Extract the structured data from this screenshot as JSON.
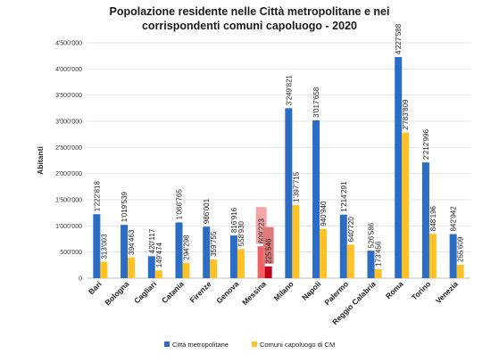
{
  "chart_data": {
    "type": "bar",
    "title_lines": [
      "Popolazione residente nelle Città metropolitane e nei",
      "corrispondenti comuni capoluogo - 2020"
    ],
    "ylabel": "Abitanti",
    "xlabel": "",
    "ylim": [
      0,
      4500000
    ],
    "yticks": [
      "0",
      "500'000",
      "1'000'000",
      "1'500'000",
      "2'000'000",
      "2'500'000",
      "3'000'000",
      "3'500'000",
      "4'000'000",
      "4'500'000"
    ],
    "grid": true,
    "legend_position": "bottom",
    "categories": [
      "Bari",
      "Bologna",
      "Cagliari",
      "Catania",
      "Firenze",
      "Genova",
      "Messina",
      "Milano",
      "Napoli",
      "Palermo",
      "Reggio Calabria",
      "Roma",
      "Torino",
      "Venezia"
    ],
    "series": [
      {
        "name": "Città metropolitane",
        "color": "#2b6cc4",
        "values": [
          1222818,
          1019539,
          420117,
          1066765,
          986001,
          816916,
          609223,
          3249821,
          3017658,
          1214291,
          526586,
          4227588,
          2212996,
          842942
        ],
        "labels": [
          "1'222'818",
          "1'019'539",
          "420'117",
          "1'066'765",
          "986'001",
          "816'916",
          "609'223",
          "3'249'821",
          "3'017'658",
          "1'214'291",
          "526'586",
          "4'227'588",
          "2'212'996",
          "842'942"
        ]
      },
      {
        "name": "Comuni capoluogo di CM",
        "color": "#ffc124",
        "values": [
          313003,
          394463,
          149474,
          294298,
          359755,
          558930,
          225546,
          1397715,
          940940,
          640720,
          173456,
          2783809,
          848196,
          255609
        ],
        "labels": [
          "313'003",
          "394'463",
          "149'474",
          "294'298",
          "359'755",
          "558'930",
          "225'546",
          "1'397'715",
          "940'940",
          "640'720",
          "173'456",
          "2'783'809",
          "848'196",
          "255'609"
        ]
      }
    ],
    "highlight": {
      "category": "Messina",
      "bar_colors": [
        "#f06060",
        "#c0001a"
      ],
      "label_box_colors": [
        "#f4a6a6",
        "#e07a7a"
      ]
    }
  }
}
